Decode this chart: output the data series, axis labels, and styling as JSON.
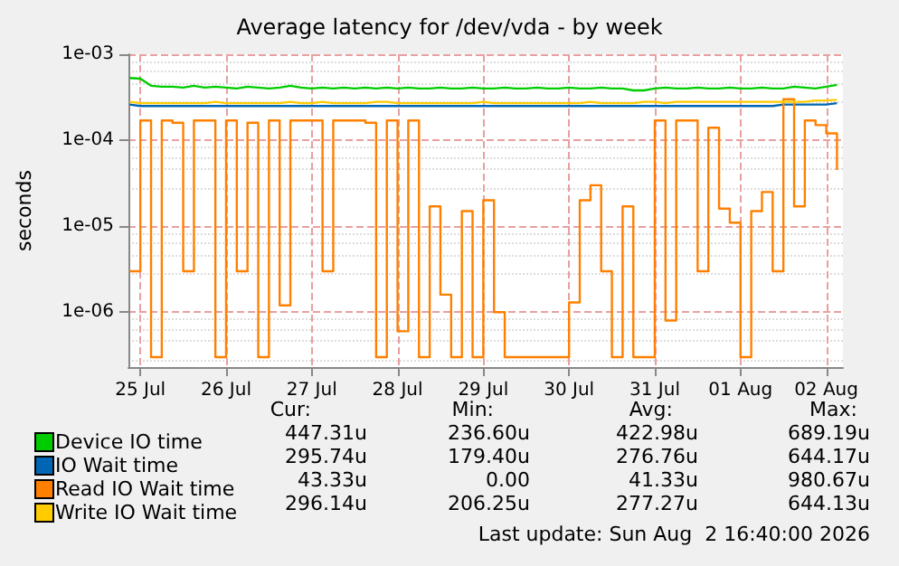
{
  "chart_data": {
    "type": "line",
    "title": "Average latency for /dev/vda - by week",
    "ylabel": "seconds",
    "log": "y",
    "xlim": [
      "2026-07-25T08:40",
      "2026-08-02T16:40"
    ],
    "xticks": [
      {
        "value": "2026-07-25T12:00",
        "label": "25 Jul"
      },
      {
        "value": "2026-07-26T12:00",
        "label": "26 Jul"
      },
      {
        "value": "2026-07-27T12:00",
        "label": "27 Jul"
      },
      {
        "value": "2026-07-28T12:00",
        "label": "28 Jul"
      },
      {
        "value": "2026-07-29T12:00",
        "label": "29 Jul"
      },
      {
        "value": "2026-07-30T12:00",
        "label": "30 Jul"
      },
      {
        "value": "2026-07-31T12:00",
        "label": "31 Jul"
      },
      {
        "value": "2026-08-01T12:00",
        "label": "01 Aug"
      },
      {
        "value": "2026-08-02T12:00",
        "label": "02 Aug"
      }
    ],
    "ylim": [
      2.3e-07,
      0.001
    ],
    "yticks": [
      {
        "value": 1e-06,
        "label": "1e-06"
      },
      {
        "value": 1e-05,
        "label": "1e-05"
      },
      {
        "value": 0.0001,
        "label": "1e-04"
      },
      {
        "value": 0.001,
        "label": "1e-03"
      }
    ],
    "grid": true,
    "legend": "bottom left",
    "marker": "none",
    "line_style": "solid",
    "x": [
      "2026-07-25T09:00",
      "2026-07-25T12:00",
      "2026-07-25T15:00",
      "2026-07-25T18:00",
      "2026-07-25T21:00",
      "2026-07-26T00:00",
      "2026-07-26T03:00",
      "2026-07-26T06:00",
      "2026-07-26T09:00",
      "2026-07-26T12:00",
      "2026-07-26T15:00",
      "2026-07-26T18:00",
      "2026-07-26T21:00",
      "2026-07-27T00:00",
      "2026-07-27T03:00",
      "2026-07-27T06:00",
      "2026-07-27T09:00",
      "2026-07-27T12:00",
      "2026-07-27T15:00",
      "2026-07-27T18:00",
      "2026-07-27T21:00",
      "2026-07-28T00:00",
      "2026-07-28T03:00",
      "2026-07-28T06:00",
      "2026-07-28T09:00",
      "2026-07-28T12:00",
      "2026-07-28T15:00",
      "2026-07-28T18:00",
      "2026-07-28T21:00",
      "2026-07-29T00:00",
      "2026-07-29T03:00",
      "2026-07-29T06:00",
      "2026-07-29T09:00",
      "2026-07-29T12:00",
      "2026-07-29T15:00",
      "2026-07-29T18:00",
      "2026-07-29T21:00",
      "2026-07-30T00:00",
      "2026-07-30T03:00",
      "2026-07-30T06:00",
      "2026-07-30T09:00",
      "2026-07-30T12:00",
      "2026-07-30T15:00",
      "2026-07-30T18:00",
      "2026-07-30T21:00",
      "2026-07-31T00:00",
      "2026-07-31T03:00",
      "2026-07-31T06:00",
      "2026-07-31T09:00",
      "2026-07-31T12:00",
      "2026-07-31T15:00",
      "2026-07-31T18:00",
      "2026-07-31T21:00",
      "2026-08-01T00:00",
      "2026-08-01T03:00",
      "2026-08-01T06:00",
      "2026-08-01T09:00",
      "2026-08-01T12:00",
      "2026-08-01T15:00",
      "2026-08-01T18:00",
      "2026-08-01T21:00",
      "2026-08-02T00:00",
      "2026-08-02T03:00",
      "2026-08-02T06:00",
      "2026-08-02T09:00",
      "2026-08-02T12:00",
      "2026-08-02T15:00"
    ],
    "series": [
      {
        "name": "Device IO time",
        "color": "#00cc00",
        "values": [
          0.00053,
          0.00052,
          0.00043,
          0.00042,
          0.00042,
          0.00041,
          0.00043,
          0.00041,
          0.00042,
          0.00041,
          0.0004,
          0.00042,
          0.00041,
          0.0004,
          0.00041,
          0.00043,
          0.00041,
          0.0004,
          0.00041,
          0.0004,
          0.00041,
          0.0004,
          0.00041,
          0.0004,
          0.00041,
          0.0004,
          0.00041,
          0.0004,
          0.0004,
          0.00041,
          0.0004,
          0.0004,
          0.00041,
          0.0004,
          0.0004,
          0.00041,
          0.0004,
          0.0004,
          0.00041,
          0.0004,
          0.0004,
          0.00041,
          0.0004,
          0.0004,
          0.00041,
          0.0004,
          0.0004,
          0.00038,
          0.00038,
          0.0004,
          0.00041,
          0.0004,
          0.0004,
          0.00041,
          0.0004,
          0.0004,
          0.00041,
          0.0004,
          0.0004,
          0.00041,
          0.0004,
          0.0004,
          0.00042,
          0.00041,
          0.0004,
          0.00042,
          0.00044
        ]
      },
      {
        "name": "IO Wait time",
        "color": "#0066b3",
        "values": [
          0.00026,
          0.00025,
          0.00025,
          0.00025,
          0.00025,
          0.00025,
          0.00025,
          0.00025,
          0.00025,
          0.00025,
          0.00025,
          0.00025,
          0.00025,
          0.00025,
          0.00025,
          0.00025,
          0.00025,
          0.00025,
          0.00025,
          0.00025,
          0.00025,
          0.00025,
          0.00025,
          0.00025,
          0.00025,
          0.00025,
          0.00025,
          0.00025,
          0.00025,
          0.00025,
          0.00025,
          0.00025,
          0.00025,
          0.00025,
          0.00025,
          0.00025,
          0.00025,
          0.00025,
          0.00025,
          0.00025,
          0.00025,
          0.00025,
          0.00025,
          0.00025,
          0.00025,
          0.00025,
          0.00025,
          0.00025,
          0.00025,
          0.00025,
          0.00025,
          0.00025,
          0.00025,
          0.00025,
          0.00025,
          0.00025,
          0.00025,
          0.00025,
          0.00025,
          0.00025,
          0.00025,
          0.00026,
          0.00026,
          0.00026,
          0.00026,
          0.00026,
          0.00027
        ]
      },
      {
        "name": "Read IO Wait time",
        "color": "#ff8000",
        "type": "step",
        "values": [
          3e-06,
          0.00017,
          3e-07,
          0.00017,
          0.00016,
          3e-06,
          0.00017,
          0.00017,
          3e-07,
          0.00017,
          3e-06,
          0.00016,
          3e-07,
          0.00017,
          1.2e-06,
          0.00017,
          0.00017,
          0.00017,
          3e-06,
          0.00017,
          0.00017,
          0.00017,
          0.00016,
          3e-07,
          0.00017,
          6e-07,
          0.00017,
          3e-07,
          1.7e-05,
          1.6e-06,
          3e-07,
          1.5e-05,
          3e-07,
          2e-05,
          1e-06,
          3e-07,
          3e-07,
          3e-07,
          3e-07,
          3e-07,
          3e-07,
          1.3e-06,
          2e-05,
          3e-05,
          3e-06,
          3e-07,
          1.7e-05,
          3e-07,
          3e-07,
          0.00017,
          8e-07,
          0.00017,
          0.00017,
          3e-06,
          0.00014,
          1.6e-05,
          1.1e-05,
          3e-07,
          1.5e-05,
          2.5e-05,
          3e-06,
          0.0003,
          1.7e-05,
          0.00017,
          0.00015,
          0.00012,
          4.5e-05
        ]
      },
      {
        "name": "Write IO Wait time",
        "color": "#ffcc00",
        "values": [
          0.00028,
          0.00027,
          0.00027,
          0.00027,
          0.00027,
          0.00027,
          0.00027,
          0.00027,
          0.00028,
          0.00027,
          0.00027,
          0.00027,
          0.00027,
          0.00027,
          0.00027,
          0.00028,
          0.00027,
          0.00027,
          0.00028,
          0.00027,
          0.00027,
          0.00027,
          0.00027,
          0.00028,
          0.00028,
          0.00027,
          0.00027,
          0.00027,
          0.00027,
          0.00027,
          0.00027,
          0.00027,
          0.00027,
          0.00028,
          0.00027,
          0.00027,
          0.00027,
          0.00027,
          0.00027,
          0.00027,
          0.00027,
          0.00027,
          0.00027,
          0.00028,
          0.00027,
          0.00027,
          0.00027,
          0.00027,
          0.00028,
          0.00028,
          0.00027,
          0.00028,
          0.00028,
          0.00028,
          0.00028,
          0.00028,
          0.00028,
          0.00028,
          0.00028,
          0.00028,
          0.00028,
          0.00028,
          0.00028,
          0.00028,
          0.00029,
          0.00029,
          0.000295
        ]
      }
    ],
    "annotations": [
      "Cur:",
      "Min:",
      "Avg:",
      "Max:",
      "447.31u",
      "236.60u",
      "422.98u",
      "689.19u",
      "295.74u",
      "179.40u",
      "276.76u",
      "644.17u",
      "43.33u",
      "0.00",
      "41.33u",
      "980.67u",
      "296.14u",
      "206.25u",
      "277.27u",
      "644.13u",
      "Last update: Sun Aug  2 16:40:00 2026"
    ]
  }
}
